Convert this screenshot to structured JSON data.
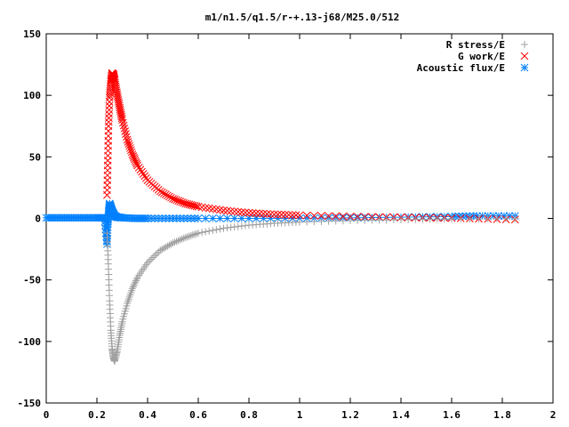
{
  "chart_data": {
    "type": "scatter",
    "title": "m1/n1.5/q1.5/r-+.13-j68/M25.0/512",
    "xlabel": "",
    "ylabel": "",
    "xlim": [
      0,
      2
    ],
    "ylim": [
      -150,
      150
    ],
    "xticks": [
      0,
      0.2,
      0.4,
      0.6,
      0.8,
      1,
      1.2,
      1.4,
      1.6,
      1.8,
      2
    ],
    "xtick_labels": [
      "0",
      "0.2",
      "0.4",
      "0.6",
      "0.8",
      "1",
      "1.2",
      "1.4",
      "1.6",
      "1.8",
      "2"
    ],
    "yticks": [
      -150,
      -100,
      -50,
      0,
      50,
      100,
      150
    ],
    "ytick_labels": [
      "-150",
      "-100",
      "-50",
      "0",
      "50",
      "100",
      "150"
    ],
    "legend_position": "top-right",
    "grid": false,
    "series": [
      {
        "name": "R stress/E",
        "marker": "plus",
        "color": "#a0a0a0",
        "x": [
          0.24,
          0.245,
          0.25,
          0.255,
          0.26,
          0.265,
          0.27,
          0.28,
          0.29,
          0.3,
          0.32,
          0.34,
          0.36,
          0.4,
          0.45,
          0.5,
          0.55,
          0.6,
          0.7,
          0.8,
          0.9,
          1.0,
          1.2,
          1.4,
          1.6,
          1.85
        ],
        "y": [
          -12,
          -37,
          -67,
          -91,
          -106,
          -113,
          -116,
          -108,
          -95,
          -84,
          -69,
          -57,
          -48,
          -36,
          -26,
          -20,
          -15.5,
          -12,
          -8,
          -5.5,
          -4,
          -3,
          -1.8,
          -1,
          -0.5,
          0
        ]
      },
      {
        "name": "G work/E",
        "marker": "x",
        "color": "#ff0000",
        "x": [
          0.24,
          0.243,
          0.246,
          0.25,
          0.255,
          0.26,
          0.265,
          0.27,
          0.28,
          0.29,
          0.3,
          0.32,
          0.34,
          0.36,
          0.4,
          0.45,
          0.5,
          0.55,
          0.6,
          0.7,
          0.8,
          0.9,
          1.0,
          1.2,
          1.4,
          1.6,
          1.85
        ],
        "y": [
          19,
          47,
          75,
          98,
          111,
          118,
          117,
          112,
          101,
          90,
          80,
          64,
          52,
          43,
          31,
          22,
          16,
          12,
          9.5,
          6.5,
          4.5,
          3.3,
          2.5,
          1.5,
          0.8,
          0.3,
          -1
        ]
      },
      {
        "name": "Acoustic flux/E",
        "marker": "star",
        "color": "#0080ff",
        "x": [
          0.0,
          0.05,
          0.1,
          0.15,
          0.2,
          0.23,
          0.24,
          0.243,
          0.246,
          0.25,
          0.255,
          0.26,
          0.27,
          0.28,
          0.3,
          0.35,
          0.4,
          0.5,
          0.6,
          0.8,
          1.0,
          1.2,
          1.4,
          1.6,
          1.7,
          1.85
        ],
        "y": [
          0.5,
          0.5,
          0.5,
          0.5,
          0.5,
          0.5,
          -21,
          -5,
          5,
          12,
          9,
          6,
          2,
          1,
          0.5,
          0,
          0,
          0,
          0,
          0,
          0,
          0.5,
          1,
          1.5,
          2,
          2
        ]
      }
    ]
  }
}
